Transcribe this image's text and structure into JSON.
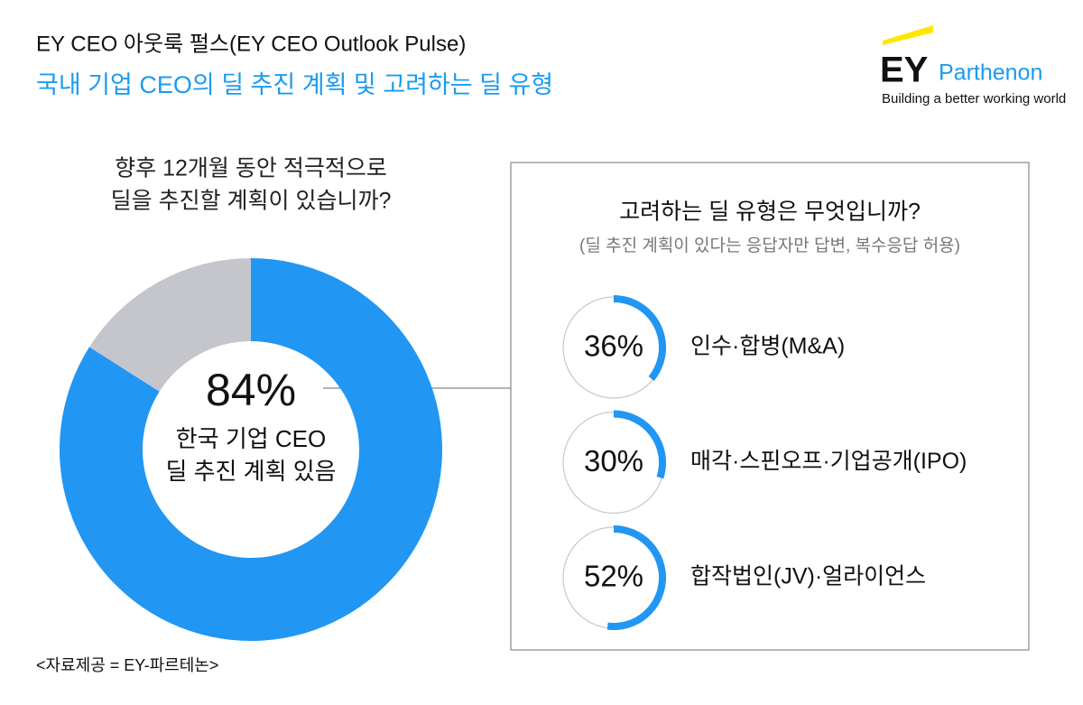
{
  "header": {
    "title": "EY CEO 아웃룩 펄스(EY CEO Outlook Pulse)",
    "subtitle": "국내 기업 CEO의 딜 추진 계획 및 고려하는 딜 유형"
  },
  "logo": {
    "brand": "EY",
    "name": "Parthenon",
    "tagline": "Building a better working world"
  },
  "chart_data": [
    {
      "type": "donut",
      "title": [
        "향후 12개월 동안 적극적으로",
        "딜을 추진할 계획이 있습니까?"
      ],
      "values": [
        84,
        16
      ],
      "value_labels": [
        "84%",
        null
      ],
      "colors": [
        "#2196f3",
        "#c5c5cc"
      ],
      "center_text": [
        "한국 기업 CEO",
        "딜 추진 계획 있음"
      ]
    },
    {
      "type": "ring",
      "title": "고려하는 딜 유형은 무엇입니까?",
      "subtitle": "(딜 추진 계획이 있다는 응답자만 답변, 복수응답 허용)",
      "categories": [
        "인수·합병(M&A)",
        "매각·스핀오프·기업공개(IPO)",
        "합작법인(JV)·얼라이언스"
      ],
      "values": [
        36,
        30,
        52
      ],
      "value_labels": [
        "36%",
        "30%",
        "52%"
      ],
      "ylim": [
        0,
        100
      ],
      "color": "#2196f3",
      "track_color": "#c8c8c8"
    }
  ],
  "footer": "<자료제공 = EY-파르테논>"
}
